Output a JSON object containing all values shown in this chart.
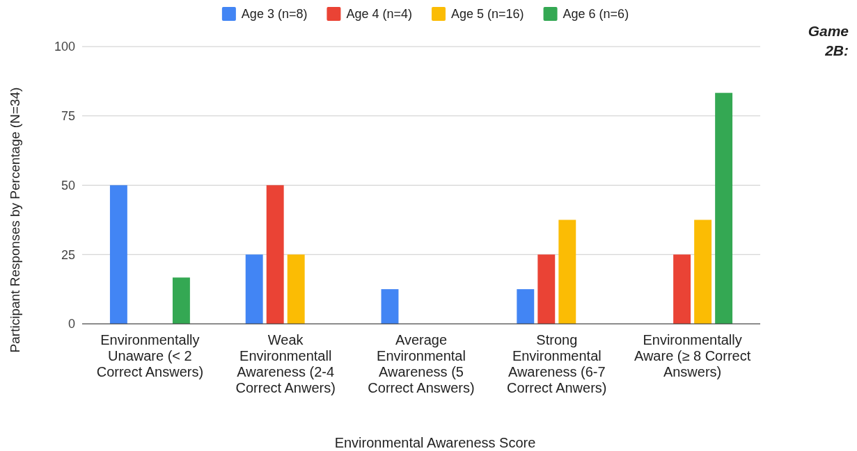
{
  "chart_data": {
    "type": "bar",
    "xlabel": "Environmental Awareness Score",
    "ylabel": "Participant Responses by Percentage (N=34)",
    "categories": [
      "Environmentally Unaware (< 2 Correct Answers)",
      "Weak Environmentall Awareness (2-4 Correct Anwers)",
      "Average Environmental Awareness (5 Correct Answers)",
      "Strong Environmental Awareness (6-7 Correct Anwers)",
      "Environmentally Aware (≥ 8 Correct Answers)"
    ],
    "series": [
      {
        "name": "Age 3 (n=8)",
        "color": "#4285f4",
        "values": [
          50,
          25,
          12.5,
          12.5,
          0
        ]
      },
      {
        "name": "Age 4 (n=4)",
        "color": "#ea4335",
        "values": [
          0,
          50,
          0,
          25,
          25
        ]
      },
      {
        "name": "Age 5 (n=16)",
        "color": "#fbbc04",
        "values": [
          0,
          25,
          0,
          37.5,
          37.5
        ]
      },
      {
        "name": "Age 6 (n=6)",
        "color": "#34a853",
        "values": [
          16.7,
          0,
          0,
          0,
          83.3
        ]
      }
    ],
    "ylim": [
      0,
      100
    ],
    "yticks": [
      0,
      25,
      50,
      75,
      100
    ],
    "grid": "y",
    "legend": "top",
    "annotations": [
      "Game 2B:"
    ]
  }
}
